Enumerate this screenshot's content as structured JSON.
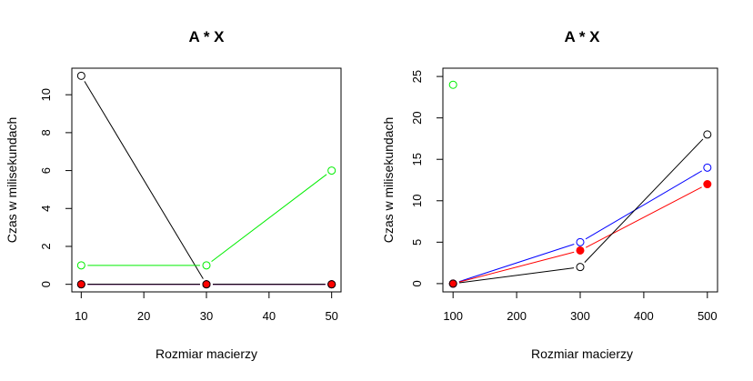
{
  "colors": {
    "black": "#000000",
    "green": "#00ee00",
    "blue": "#0000ff",
    "red": "#ff0000",
    "purple": "#8000c0"
  },
  "chart_data": [
    {
      "type": "line",
      "title": "A * X",
      "xlabel": "Rozmiar macierzy",
      "ylabel": "Czas w milisekundach",
      "xlim": [
        8.5,
        51.5
      ],
      "ylim": [
        -0.4,
        11.4
      ],
      "xticks": [
        10,
        20,
        30,
        40,
        50
      ],
      "yticks": [
        0,
        2,
        4,
        6,
        8,
        10
      ],
      "x": [
        10,
        30,
        50
      ],
      "series": [
        {
          "color": "#000000",
          "values": [
            11,
            0,
            0
          ],
          "marker": "open"
        },
        {
          "color": "#00ee00",
          "values": [
            1,
            1,
            6
          ],
          "marker": "open"
        },
        {
          "color": "#0000ff",
          "values": [
            0,
            0,
            0
          ],
          "marker": "open"
        },
        {
          "color": "#ff0000",
          "values": [
            0,
            0,
            0
          ],
          "marker": "filled"
        },
        {
          "color": "#8000c0",
          "values": [
            0,
            0,
            0
          ],
          "marker": "none"
        },
        {
          "color": "#000000",
          "values": [
            0,
            0,
            0
          ],
          "marker": "open"
        }
      ]
    },
    {
      "type": "line",
      "title": "A * X",
      "xlabel": "Rozmiar macierzy",
      "ylabel": "Czas w milisekundach",
      "xlim": [
        84,
        516
      ],
      "ylim": [
        -1,
        26
      ],
      "xticks": [
        100,
        200,
        300,
        400,
        500
      ],
      "yticks": [
        0,
        5,
        10,
        15,
        20,
        25
      ],
      "x": [
        100,
        300,
        500
      ],
      "series": [
        {
          "color": "#00ee00",
          "values": [
            24,
            null,
            null
          ],
          "marker": "open"
        },
        {
          "color": "#0000ff",
          "values": [
            0,
            5,
            14
          ],
          "marker": "open"
        },
        {
          "color": "#ff0000",
          "values": [
            0,
            4,
            12
          ],
          "marker": "filled"
        },
        {
          "color": "#000000",
          "values": [
            0,
            2,
            18
          ],
          "marker": "open"
        }
      ]
    }
  ]
}
